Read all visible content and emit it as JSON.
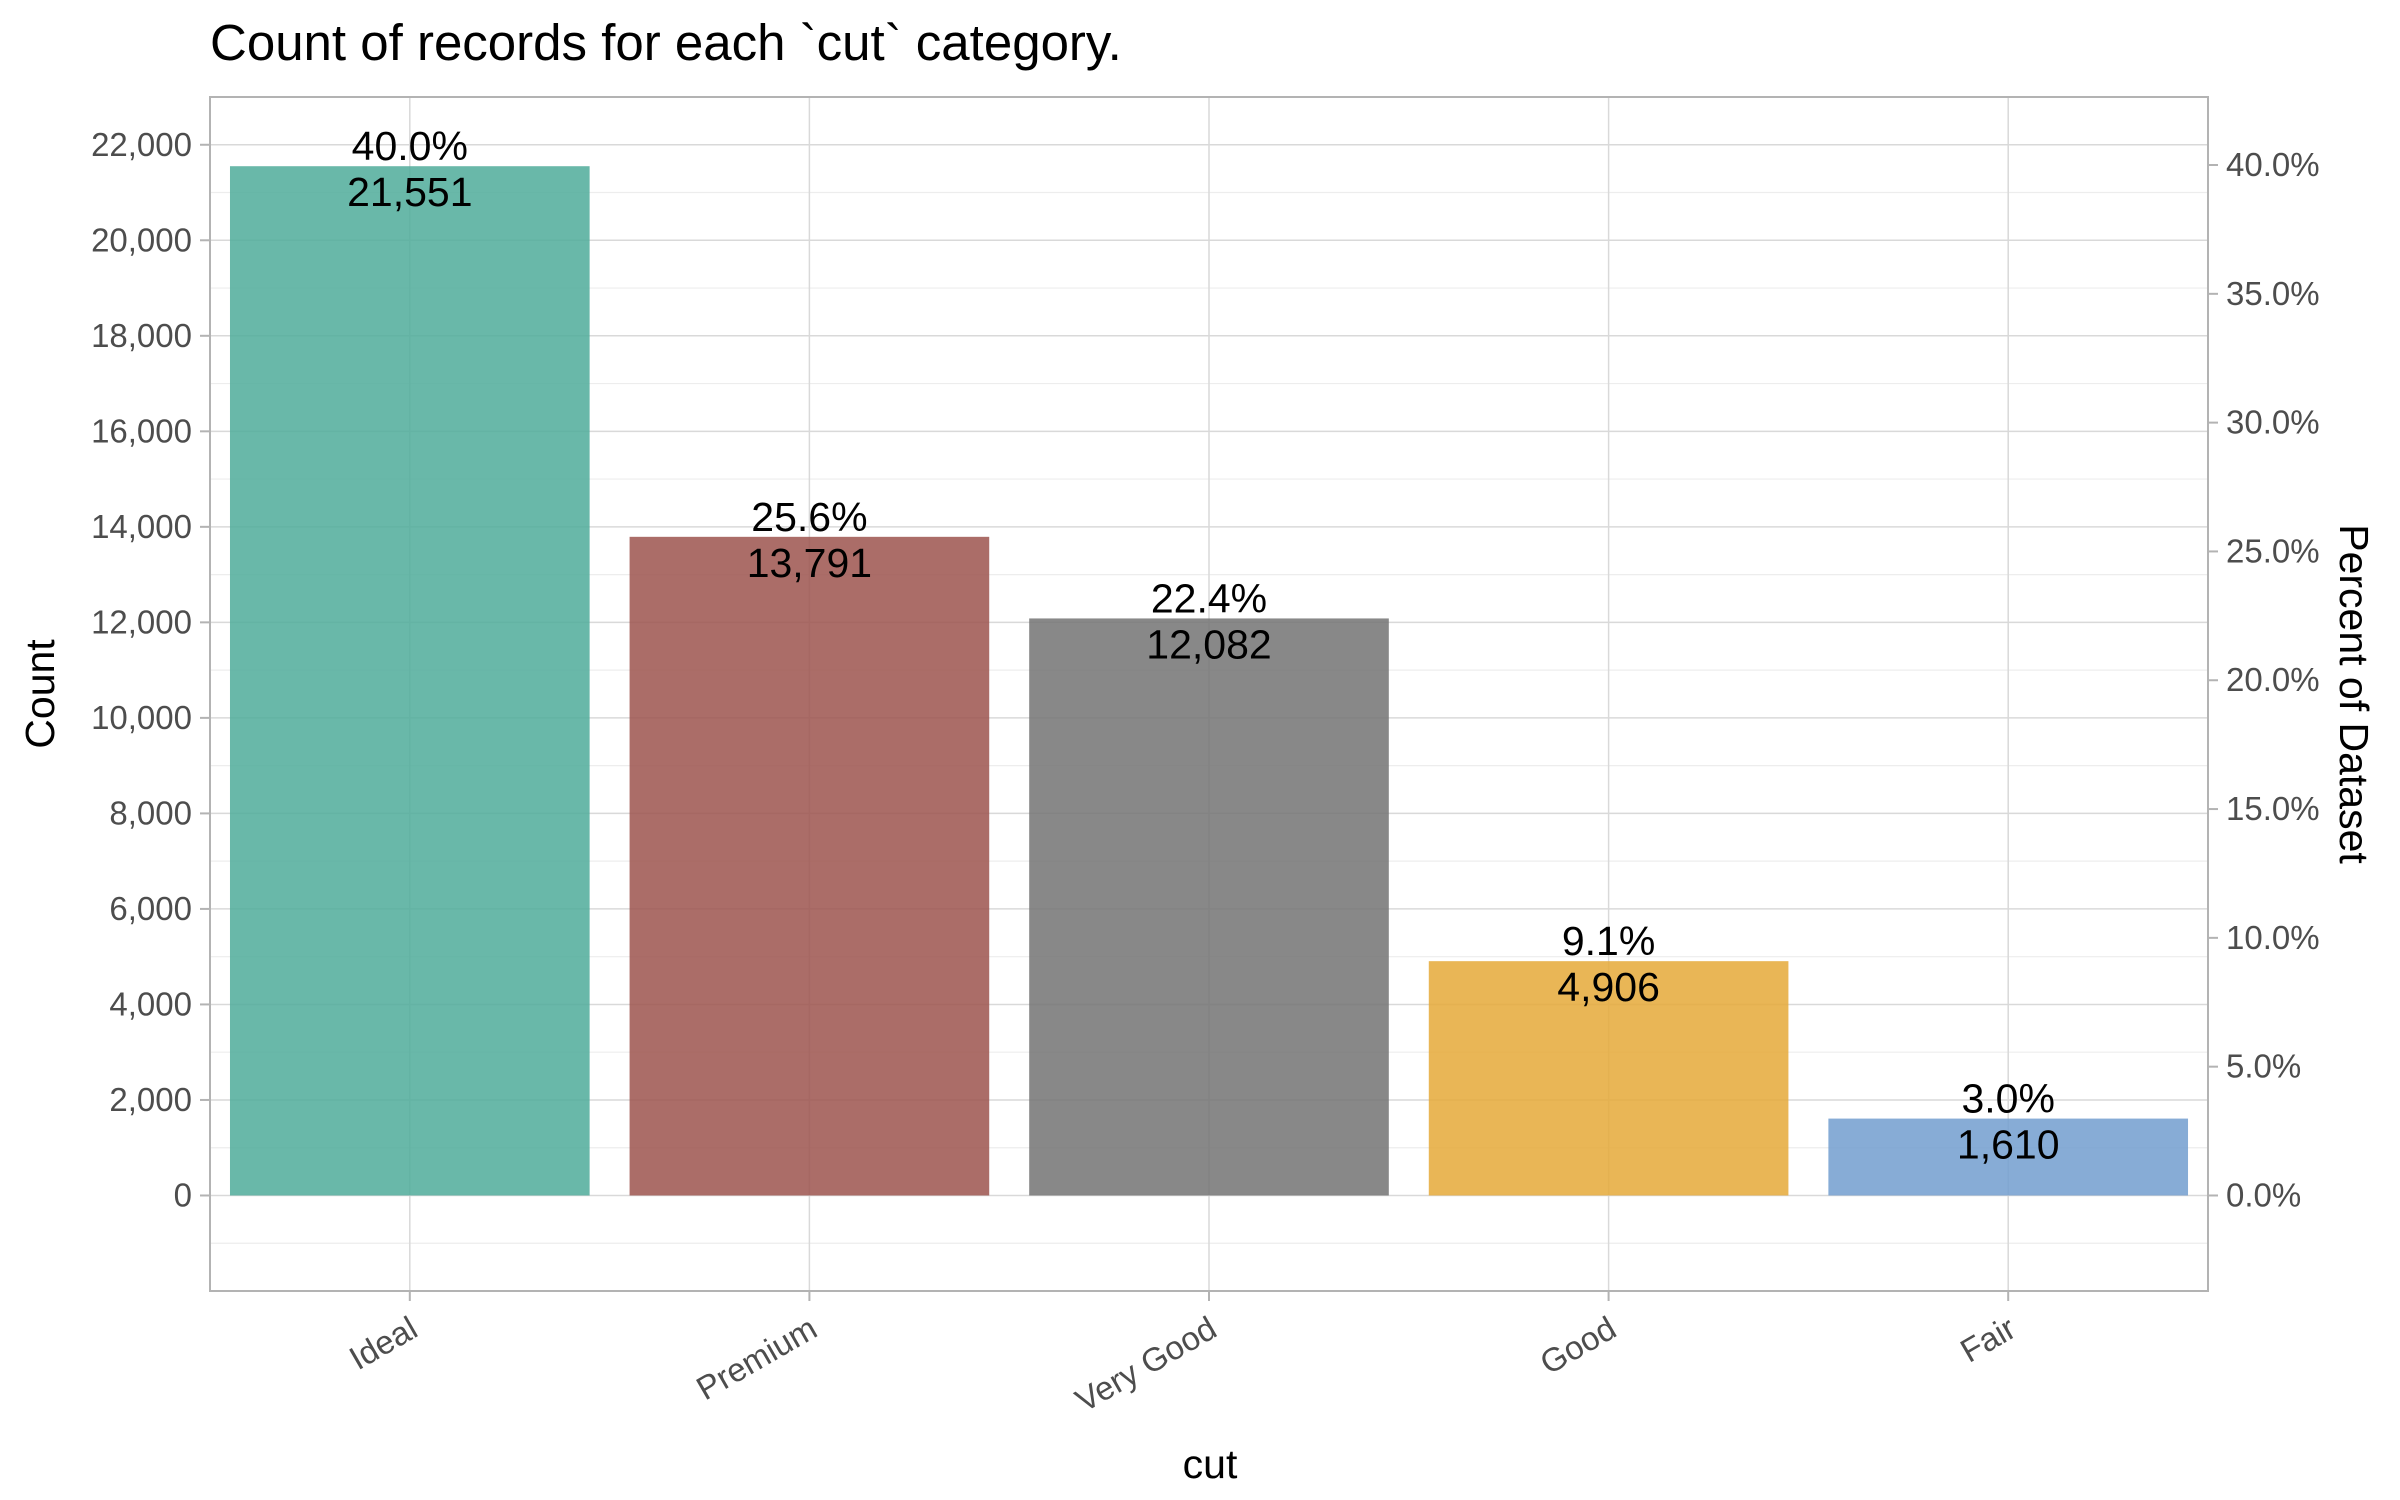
{
  "chart_data": {
    "type": "bar",
    "title": "Count of records for each `cut` category.",
    "xlabel": "cut",
    "ylabel": "Count",
    "y2label": "Percent of Dataset",
    "categories": [
      "Ideal",
      "Premium",
      "Very Good",
      "Good",
      "Fair"
    ],
    "values": [
      21551,
      13791,
      12082,
      4906,
      1610
    ],
    "value_labels": [
      "21,551",
      "13,791",
      "12,082",
      "4,906",
      "1,610"
    ],
    "percent_labels": [
      "40.0%",
      "25.6%",
      "22.4%",
      "9.1%",
      "3.0%"
    ],
    "colors": [
      "#4fac9a",
      "#9c544d",
      "#737373",
      "#e5a938",
      "#729ecf"
    ],
    "bar_opacity": 0.85,
    "ylim": [
      -2000,
      23000
    ],
    "yticks": [
      0,
      2000,
      4000,
      6000,
      8000,
      10000,
      12000,
      14000,
      16000,
      18000,
      20000,
      22000
    ],
    "ytick_labels": [
      "0",
      "2,000",
      "4,000",
      "6,000",
      "8,000",
      "10,000",
      "12,000",
      "14,000",
      "16,000",
      "18,000",
      "20,000",
      "22,000"
    ],
    "y2_total": 53940,
    "y2ticks": [
      0,
      5,
      10,
      15,
      20,
      25,
      30,
      35,
      40
    ],
    "y2tick_labels": [
      "0.0%",
      "5.0%",
      "10.0%",
      "15.0%",
      "20.0%",
      "25.0%",
      "30.0%",
      "35.0%",
      "40.0%"
    ],
    "grid": true,
    "legend": "none"
  }
}
